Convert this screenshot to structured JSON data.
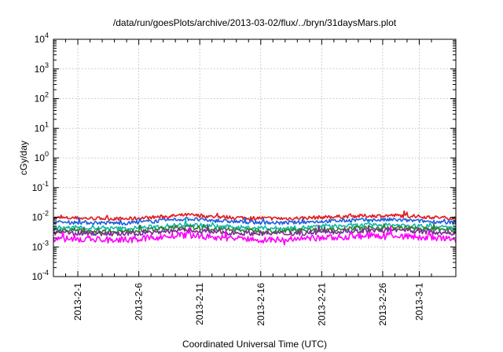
{
  "chart_data": {
    "type": "line",
    "title": "/data/run/goesPlots/archive/2013-03-02/flux/../bryn/31daysMars.plot",
    "xlabel": "Coordinated Universal Time (UTC)",
    "ylabel": "cGy/day",
    "yscale": "log",
    "ylim": [
      0.0001,
      10000
    ],
    "y_ticks": [
      {
        "value": 0.0001,
        "base": "10",
        "exp": "-4"
      },
      {
        "value": 0.001,
        "base": "10",
        "exp": "-3"
      },
      {
        "value": 0.01,
        "base": "10",
        "exp": "-2"
      },
      {
        "value": 0.1,
        "base": "10",
        "exp": "-1"
      },
      {
        "value": 1,
        "base": "10",
        "exp": "0"
      },
      {
        "value": 10,
        "base": "10",
        "exp": "1"
      },
      {
        "value": 100,
        "base": "10",
        "exp": "2"
      },
      {
        "value": 1000,
        "base": "10",
        "exp": "3"
      },
      {
        "value": 10000,
        "base": "10",
        "exp": "4"
      }
    ],
    "xlim": [
      "2013-01-30",
      "2013-03-04"
    ],
    "x_ticks": [
      {
        "date": "2013-02-01",
        "label": "2013-2-1"
      },
      {
        "date": "2013-02-06",
        "label": "2013-2-6"
      },
      {
        "date": "2013-02-11",
        "label": "2013-2-11"
      },
      {
        "date": "2013-02-16",
        "label": "2013-2-16"
      },
      {
        "date": "2013-02-21",
        "label": "2013-2-21"
      },
      {
        "date": "2013-02-26",
        "label": "2013-2-26"
      },
      {
        "date": "2013-03-01",
        "label": "2013-3-1"
      }
    ],
    "x_minor_ticks_per_major": 5,
    "grid": true,
    "series": [
      {
        "color": "#e31a1c",
        "x": [
          "2013-01-30",
          "2013-02-02",
          "2013-02-05",
          "2013-02-08",
          "2013-02-10",
          "2013-02-12",
          "2013-02-15",
          "2013-02-18",
          "2013-02-21",
          "2013-02-24",
          "2013-02-27",
          "2013-03-01",
          "2013-03-04"
        ],
        "values": [
          0.0095,
          0.0092,
          0.0088,
          0.0105,
          0.012,
          0.0105,
          0.0095,
          0.009,
          0.01,
          0.011,
          0.0115,
          0.0105,
          0.0092
        ]
      },
      {
        "color": "#1f5fe0",
        "x": [
          "2013-01-30",
          "2013-02-02",
          "2013-02-05",
          "2013-02-08",
          "2013-02-10",
          "2013-02-12",
          "2013-02-15",
          "2013-02-18",
          "2013-02-21",
          "2013-02-24",
          "2013-02-27",
          "2013-03-01",
          "2013-03-04"
        ],
        "values": [
          0.0068,
          0.0066,
          0.0063,
          0.0078,
          0.0088,
          0.0077,
          0.0068,
          0.0064,
          0.0073,
          0.008,
          0.0082,
          0.0075,
          0.0066
        ]
      },
      {
        "color": "#16b8a6",
        "x": [
          "2013-01-30",
          "2013-02-02",
          "2013-02-05",
          "2013-02-08",
          "2013-02-10",
          "2013-02-12",
          "2013-02-15",
          "2013-02-18",
          "2013-02-21",
          "2013-02-24",
          "2013-02-27",
          "2013-03-01",
          "2013-03-04"
        ],
        "values": [
          0.0045,
          0.0043,
          0.0041,
          0.005,
          0.0057,
          0.005,
          0.0044,
          0.0042,
          0.0048,
          0.0053,
          0.0055,
          0.005,
          0.0044
        ]
      },
      {
        "color": "#2e7d32",
        "x": [
          "2013-01-30",
          "2013-02-02",
          "2013-02-05",
          "2013-02-08",
          "2013-02-10",
          "2013-02-12",
          "2013-02-15",
          "2013-02-18",
          "2013-02-21",
          "2013-02-24",
          "2013-02-27",
          "2013-03-01",
          "2013-03-04"
        ],
        "values": [
          0.0037,
          0.0035,
          0.0033,
          0.0041,
          0.0046,
          0.004,
          0.0036,
          0.0034,
          0.0039,
          0.0043,
          0.0045,
          0.0041,
          0.0036
        ]
      },
      {
        "color": "#7a2e8e",
        "x": [
          "2013-01-30",
          "2013-02-02",
          "2013-02-05",
          "2013-02-08",
          "2013-02-10",
          "2013-02-12",
          "2013-02-15",
          "2013-02-18",
          "2013-02-21",
          "2013-02-24",
          "2013-02-27",
          "2013-03-01",
          "2013-03-04"
        ],
        "values": [
          0.003,
          0.0029,
          0.0027,
          0.0033,
          0.0037,
          0.0032,
          0.0029,
          0.0028,
          0.0031,
          0.0034,
          0.0036,
          0.0033,
          0.0029
        ]
      },
      {
        "color": "#ff00ff",
        "x": [
          "2013-01-30",
          "2013-02-02",
          "2013-02-05",
          "2013-02-08",
          "2013-02-10",
          "2013-02-12",
          "2013-02-15",
          "2013-02-18",
          "2013-02-21",
          "2013-02-24",
          "2013-02-27",
          "2013-03-01",
          "2013-03-04"
        ],
        "values": [
          0.0019,
          0.0018,
          0.0017,
          0.0022,
          0.0025,
          0.0021,
          0.0018,
          0.0017,
          0.002,
          0.0023,
          0.0024,
          0.0021,
          0.0018
        ]
      }
    ]
  }
}
